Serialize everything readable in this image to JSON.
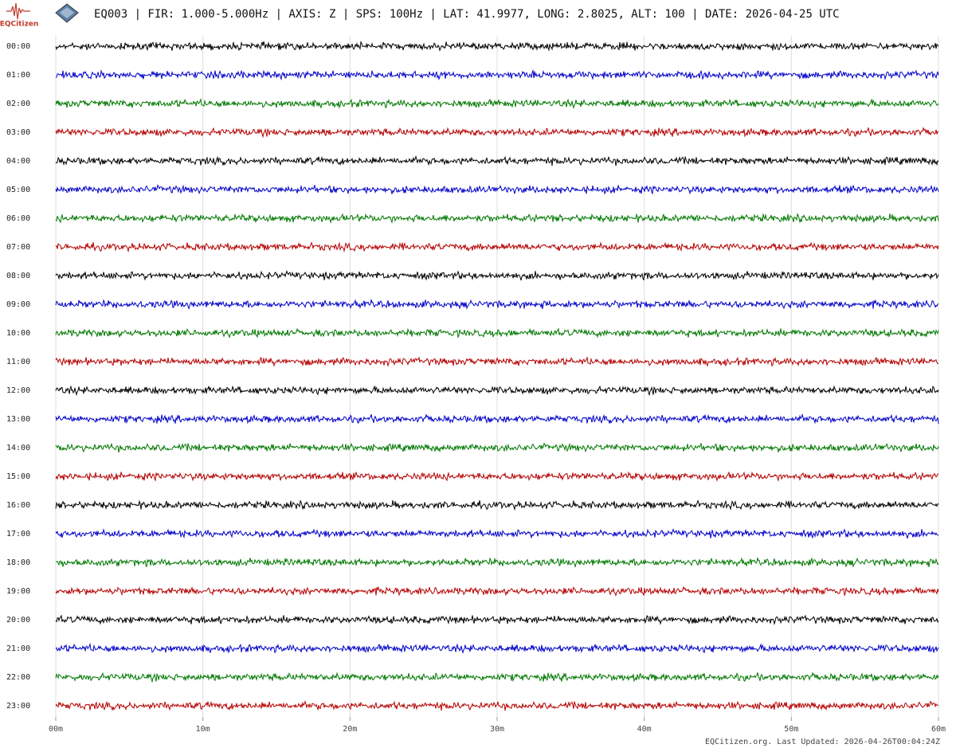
{
  "header": {
    "logo_text": "EQCitizen",
    "title": "EQ003 | FIR: 1.000-5.000Hz | AXIS: Z | SPS: 100Hz | LAT: 41.9977, LONG: 2.8025, ALT: 100 | DATE: 2026-04-25 UTC"
  },
  "chart_data": {
    "type": "helicorder",
    "rows": [
      "00:00",
      "01:00",
      "02:00",
      "03:00",
      "04:00",
      "05:00",
      "06:00",
      "07:00",
      "08:00",
      "09:00",
      "10:00",
      "11:00",
      "12:00",
      "13:00",
      "14:00",
      "15:00",
      "16:00",
      "17:00",
      "18:00",
      "19:00",
      "20:00",
      "21:00",
      "22:00",
      "23:00"
    ],
    "xlim": [
      0,
      60
    ],
    "xticks": [
      {
        "value": 0,
        "label": "00m"
      },
      {
        "value": 10,
        "label": "10m"
      },
      {
        "value": 20,
        "label": "20m"
      },
      {
        "value": 30,
        "label": "30m"
      },
      {
        "value": 40,
        "label": "40m"
      },
      {
        "value": 50,
        "label": "50m"
      },
      {
        "value": 60,
        "label": "60m"
      }
    ],
    "trace_colors": [
      "#000000",
      "#0000c8",
      "#007800",
      "#b40000"
    ],
    "grid": true
  },
  "footer": "EQCitizen.org. Last Updated: 2026-04-26T00:04:24Z"
}
